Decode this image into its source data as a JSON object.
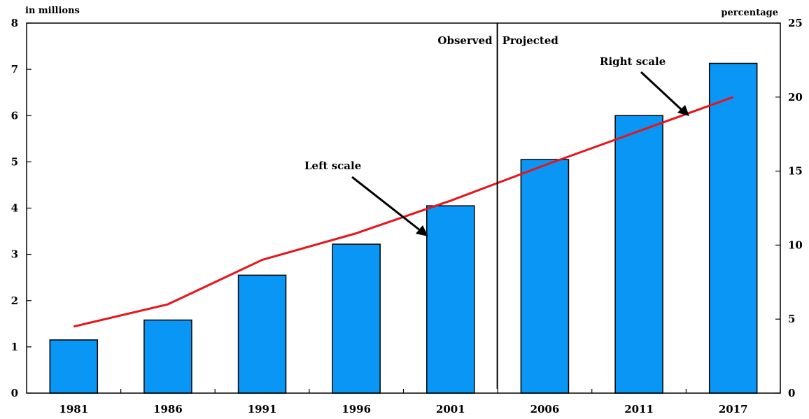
{
  "chart_data": {
    "type": "bar",
    "categories": [
      "1981",
      "1986",
      "1991",
      "1996",
      "2001",
      "2006",
      "2011",
      "2017"
    ],
    "series": [
      {
        "type": "bar",
        "axis": "left",
        "values": [
          1.15,
          1.58,
          2.55,
          3.22,
          4.05,
          5.05,
          6.0,
          7.13
        ],
        "color": "#0a96f5"
      },
      {
        "type": "line",
        "axis": "right",
        "values": [
          4.5,
          6.0,
          9.0,
          10.8,
          13.0,
          15.4,
          17.7,
          20.0
        ],
        "color": "#e8141b"
      }
    ],
    "left_axis": {
      "label": "in millions",
      "ylim": [
        0,
        8
      ],
      "ticks": [
        "0",
        "1",
        "2",
        "3",
        "4",
        "5",
        "6",
        "7",
        "8"
      ]
    },
    "right_axis": {
      "label": "percentage",
      "ylim": [
        0,
        25
      ],
      "ticks": [
        "0",
        "5",
        "10",
        "15",
        "20",
        "25"
      ]
    },
    "divider": {
      "after_category": "2001",
      "left_text": "Observed",
      "right_text": "Projected"
    },
    "annotations": [
      {
        "text": "Left scale",
        "points_to_series": 0
      },
      {
        "text": "Right scale",
        "points_to_series": 1
      }
    ],
    "grid": false
  }
}
